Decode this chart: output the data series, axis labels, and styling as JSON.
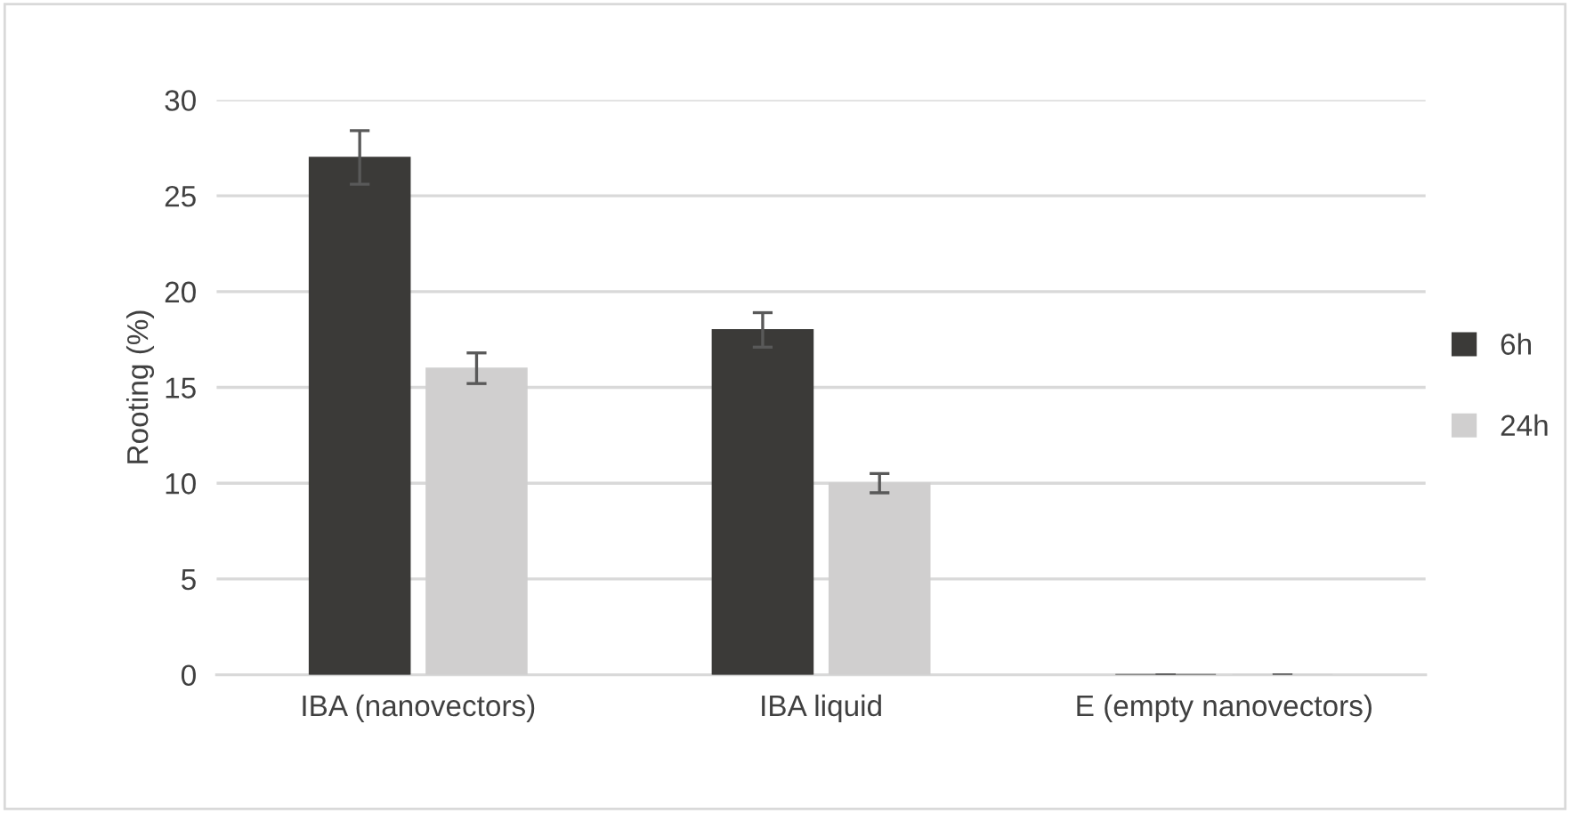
{
  "chart_data": {
    "type": "bar",
    "ylabel": "Rooting (%)",
    "categories": [
      "IBA (nanovectors)",
      "IBA liquid",
      "E (empty nanovectors)"
    ],
    "series": [
      {
        "name": "6h",
        "color": "#3b3a38",
        "values": [
          27,
          18,
          0
        ],
        "errors": [
          1.4,
          0.9,
          0
        ]
      },
      {
        "name": "24h",
        "color": "#d0cfcf",
        "values": [
          16,
          10,
          0
        ],
        "errors": [
          0.8,
          0.5,
          0
        ]
      }
    ],
    "ylim": [
      0,
      30
    ],
    "yticks": [
      0,
      5,
      10,
      15,
      20,
      25,
      30
    ],
    "grid": "y",
    "legend": "right"
  }
}
